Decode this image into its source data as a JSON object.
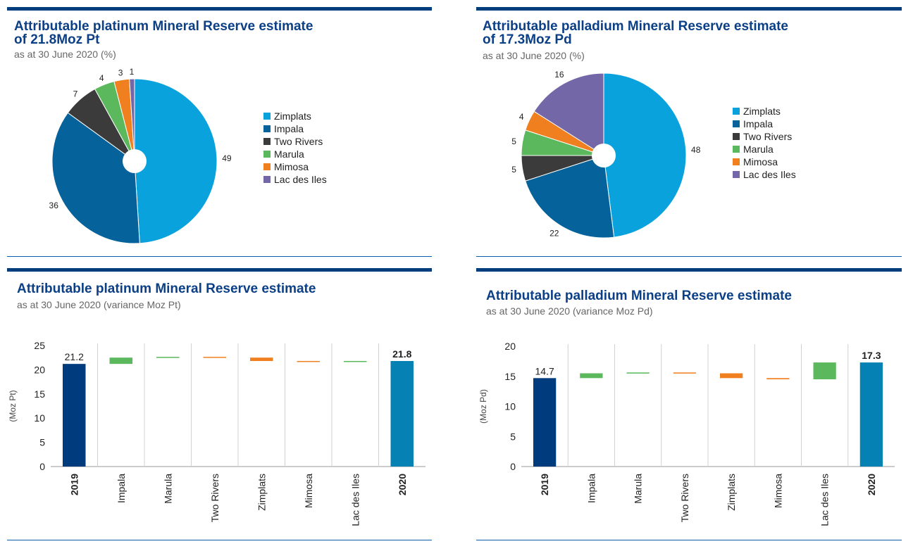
{
  "colors": {
    "Zimplats": "#0aa2dc",
    "Impala": "#05629a",
    "Two Rivers": "#3b3b3b",
    "Marula": "#5cb85c",
    "Mimosa": "#f07f1f",
    "Lac des Iles": "#7467a8",
    "base2019": "#003b7d",
    "base2020": "#0582b3",
    "increase": "#5cb85c",
    "decrease": "#f07f1f"
  },
  "pie_pt": {
    "title_line1": "Attributable platinum Mineral Reserve estimate",
    "title_line2": "of 21.8Moz Pt",
    "subtitle": "as at 30 June 2020 (%)"
  },
  "pie_pd": {
    "title_line1": "Attributable palladium Mineral Reserve estimate",
    "title_line2": "of 17.3Moz Pd",
    "subtitle": "as at 30 June 2020 (%)"
  },
  "bar_pt": {
    "title": "Attributable platinum Mineral Reserve estimate",
    "subtitle": "as at 30 June 2020 (variance Moz Pt)"
  },
  "bar_pd": {
    "title": "Attributable palladium Mineral Reserve estimate",
    "subtitle": "as at 30 June 2020 (variance Moz Pd)"
  },
  "chart_data": [
    {
      "type": "pie",
      "title": "Attributable platinum Mineral Reserve estimate of 21.8Moz Pt",
      "subtitle": "as at 30 June 2020 (%)",
      "categories": [
        "Zimplats",
        "Impala",
        "Two Rivers",
        "Marula",
        "Mimosa",
        "Lac des Iles"
      ],
      "values": [
        49,
        36,
        7,
        4,
        3,
        1
      ],
      "legend": "right"
    },
    {
      "type": "pie",
      "title": "Attributable palladium Mineral Reserve estimate of 17.3Moz Pd",
      "subtitle": "as at 30 June 2020 (%)",
      "categories": [
        "Zimplats",
        "Impala",
        "Two Rivers",
        "Marula",
        "Mimosa",
        "Lac des Iles"
      ],
      "values": [
        48,
        22,
        5,
        5,
        4,
        16
      ],
      "legend": "right"
    },
    {
      "type": "bar",
      "subtype": "waterfall",
      "title": "Attributable platinum Mineral Reserve estimate",
      "subtitle": "as at 30 June 2020 (variance Moz Pt)",
      "ylabel": "(Moz Pt)",
      "ylim": [
        0,
        25
      ],
      "yticks": [
        0,
        5,
        10,
        15,
        20,
        25
      ],
      "categories": [
        "2019",
        "Impala",
        "Marula",
        "Two Rivers",
        "Zimplats",
        "Mimosa",
        "Lac des Iles",
        "2020"
      ],
      "values": [
        21.2,
        1.3,
        0.1,
        -0.1,
        -0.7,
        -0.2,
        0.2,
        21.8
      ],
      "data_labels": [
        "21.2",
        "",
        "",
        "",
        "",
        "",
        "",
        "21.8"
      ]
    },
    {
      "type": "bar",
      "subtype": "waterfall",
      "title": "Attributable palladium Mineral Reserve estimate",
      "subtitle": "as at 30 June 2020 (variance Moz Pd)",
      "ylabel": "(Moz Pd)",
      "ylim": [
        0,
        20
      ],
      "yticks": [
        0,
        5,
        10,
        15,
        20
      ],
      "categories": [
        "2019",
        "Impala",
        "Marula",
        "Two Rivers",
        "Zimplats",
        "Mimosa",
        "Lac des Iles",
        "2020"
      ],
      "values": [
        14.7,
        0.8,
        0.1,
        -0.1,
        -0.8,
        -0.2,
        2.8,
        17.3
      ],
      "data_labels": [
        "14.7",
        "",
        "",
        "",
        "",
        "",
        "",
        "17.3"
      ]
    }
  ]
}
